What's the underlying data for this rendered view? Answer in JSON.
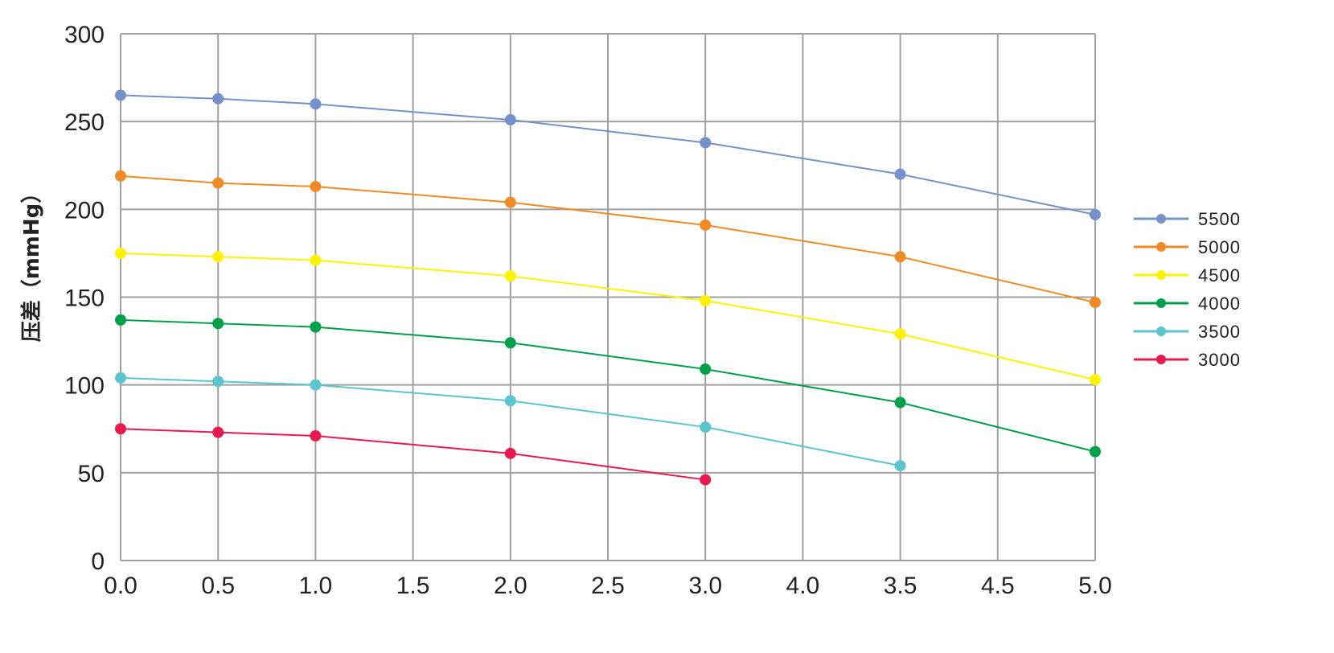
{
  "chart_data": {
    "type": "line",
    "title": "",
    "xlabel": "",
    "ylabel": "压差（mmHg）",
    "x_tick_labels": [
      "0.0",
      "0.5",
      "1.0",
      "1.5",
      "2.0",
      "2.5",
      "3.0",
      "4.0",
      "3.5",
      "4.5",
      "5.0"
    ],
    "x_positions": {
      "0.0": 0,
      "0.5": 1,
      "1.0": 2,
      "1.5": 3,
      "2.0": 4,
      "2.5": 5,
      "3.0": 6,
      "4.0": 7,
      "3.5": 8,
      "4.5": 9,
      "5.0": 10
    },
    "y_ticks": [
      0,
      50,
      100,
      150,
      200,
      250,
      300
    ],
    "ylim": [
      0,
      300
    ],
    "grid": true,
    "legend_position": "right",
    "series": [
      {
        "name": "5500",
        "color": "#7591cc",
        "x": [
          "0.0",
          "0.5",
          "1.0",
          "2.0",
          "3.0",
          "3.5",
          "5.0"
        ],
        "values": [
          265,
          263,
          260,
          251,
          238,
          220,
          197
        ]
      },
      {
        "name": "5000",
        "color": "#ef8a24",
        "x": [
          "0.0",
          "0.5",
          "1.0",
          "2.0",
          "3.0",
          "3.5",
          "5.0"
        ],
        "values": [
          219,
          215,
          213,
          204,
          191,
          173,
          147
        ]
      },
      {
        "name": "4500",
        "color": "#fff200",
        "x": [
          "0.0",
          "0.5",
          "1.0",
          "2.0",
          "3.0",
          "3.5",
          "5.0"
        ],
        "values": [
          175,
          173,
          171,
          162,
          148,
          129,
          103
        ]
      },
      {
        "name": "4000",
        "color": "#00a04a",
        "x": [
          "0.0",
          "0.5",
          "1.0",
          "2.0",
          "3.0",
          "3.5",
          "5.0"
        ],
        "values": [
          137,
          135,
          133,
          124,
          109,
          90,
          62
        ]
      },
      {
        "name": "3500",
        "color": "#5ac4cf",
        "x": [
          "0.0",
          "0.5",
          "1.0",
          "2.0",
          "3.0",
          "3.5"
        ],
        "values": [
          104,
          102,
          100,
          91,
          76,
          54
        ]
      },
      {
        "name": "3000",
        "color": "#e8194f",
        "x": [
          "0.0",
          "0.5",
          "1.0",
          "2.0",
          "3.0"
        ],
        "values": [
          75,
          73,
          71,
          61,
          46
        ]
      }
    ]
  }
}
